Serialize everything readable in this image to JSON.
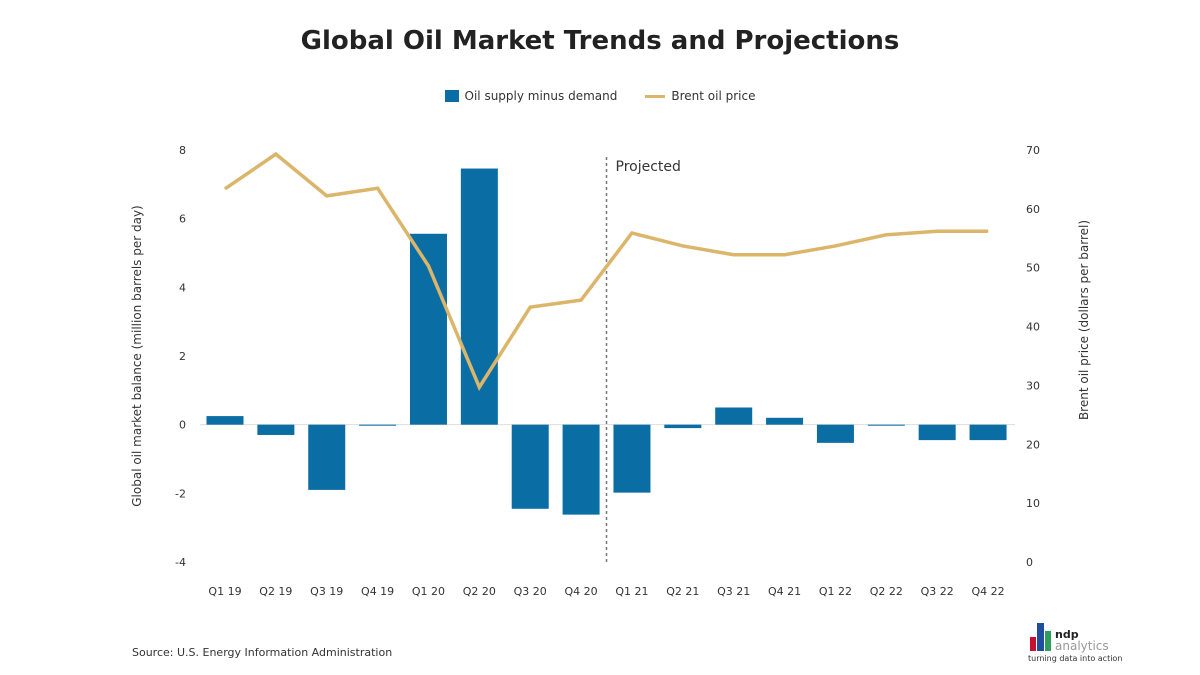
{
  "chart_data": {
    "type": "bar+line",
    "title": "Global Oil Market Trends and Projections",
    "categories": [
      "Q1 19",
      "Q2 19",
      "Q3 19",
      "Q4 19",
      "Q1 20",
      "Q2 20",
      "Q3 20",
      "Q4 20",
      "Q1 21",
      "Q2 21",
      "Q3 21",
      "Q4 21",
      "Q1 22",
      "Q2 22",
      "Q3 22",
      "Q4 22"
    ],
    "series": [
      {
        "name": "Oil supply minus demand",
        "type": "bar",
        "axis": "left",
        "color": "#0a6ea4",
        "values": [
          0.25,
          -0.3,
          -1.9,
          -0.03,
          5.56,
          7.46,
          -2.45,
          -2.62,
          -1.98,
          -0.1,
          0.5,
          0.2,
          -0.53,
          -0.03,
          -0.45,
          -0.45
        ]
      },
      {
        "name": "Brent oil price",
        "type": "line",
        "axis": "right",
        "color": "#dbb56a",
        "values": [
          63.4,
          69.3,
          62.2,
          63.5,
          50.3,
          29.7,
          43.3,
          44.5,
          55.9,
          53.7,
          52.2,
          52.2,
          53.7,
          55.6,
          56.2,
          56.2
        ]
      }
    ],
    "ylabel": "Global oil market balance (million barrels per day)",
    "y2label": "Brent oil price (dollars per barrel)",
    "ylim": [
      -4,
      8
    ],
    "yticks": [
      "8",
      "6",
      "4",
      "2",
      "0",
      "-2",
      "-4"
    ],
    "y2lim": [
      0,
      70
    ],
    "y2ticks": [
      "70",
      "60",
      "50",
      "40",
      "30",
      "20",
      "10",
      "0"
    ],
    "annotation": "Projected",
    "projected_start_index": 8,
    "legend": "top-center",
    "grid": false
  },
  "source": "Source: U.S. Energy Information Administration",
  "logo": {
    "name": "ndp",
    "sub": "analytics",
    "tagline": "turning data into action"
  }
}
